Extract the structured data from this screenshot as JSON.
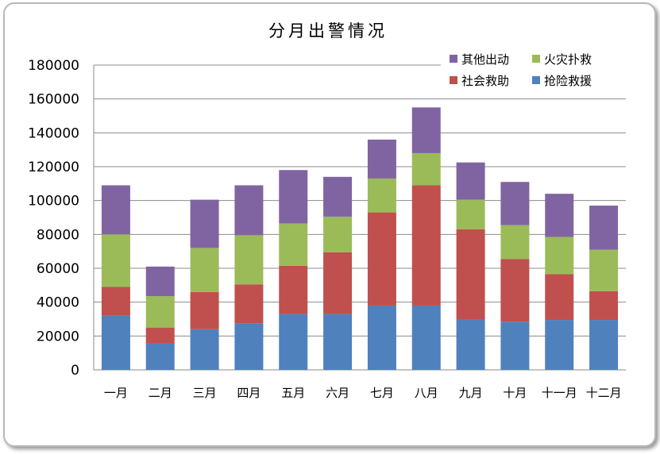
{
  "chart_data": {
    "type": "bar",
    "stacked": true,
    "title": "分月出警情况",
    "xlabel": "",
    "ylabel": "",
    "ylim": [
      0,
      180000
    ],
    "yticks": [
      0,
      20000,
      40000,
      60000,
      80000,
      100000,
      120000,
      140000,
      160000,
      180000
    ],
    "grid": true,
    "legend_position": "top-right",
    "categories": [
      "一月",
      "二月",
      "三月",
      "四月",
      "五月",
      "六月",
      "七月",
      "八月",
      "九月",
      "十月",
      "十一月",
      "十二月"
    ],
    "series": [
      {
        "name": "抢险救援",
        "color": "#4f81bd",
        "values": [
          32000,
          15500,
          24000,
          27500,
          33000,
          33000,
          38000,
          38000,
          30000,
          28500,
          29500,
          29500
        ]
      },
      {
        "name": "社会救助",
        "color": "#c0504d",
        "values": [
          17000,
          9500,
          22000,
          23000,
          28500,
          36500,
          55000,
          71000,
          53000,
          37000,
          27000,
          17000
        ]
      },
      {
        "name": "火灾扑救",
        "color": "#9bbb59",
        "values": [
          31000,
          18500,
          26000,
          29000,
          25000,
          21000,
          20000,
          19000,
          17500,
          20000,
          22000,
          24500
        ]
      },
      {
        "name": "其他出动",
        "color": "#8064a2",
        "values": [
          29000,
          17500,
          28500,
          29500,
          31500,
          23500,
          23000,
          27000,
          22000,
          25500,
          25500,
          26000
        ]
      }
    ],
    "legend_order": [
      "其他出动",
      "火灾扑救",
      "社会救助",
      "抢险救援"
    ]
  }
}
